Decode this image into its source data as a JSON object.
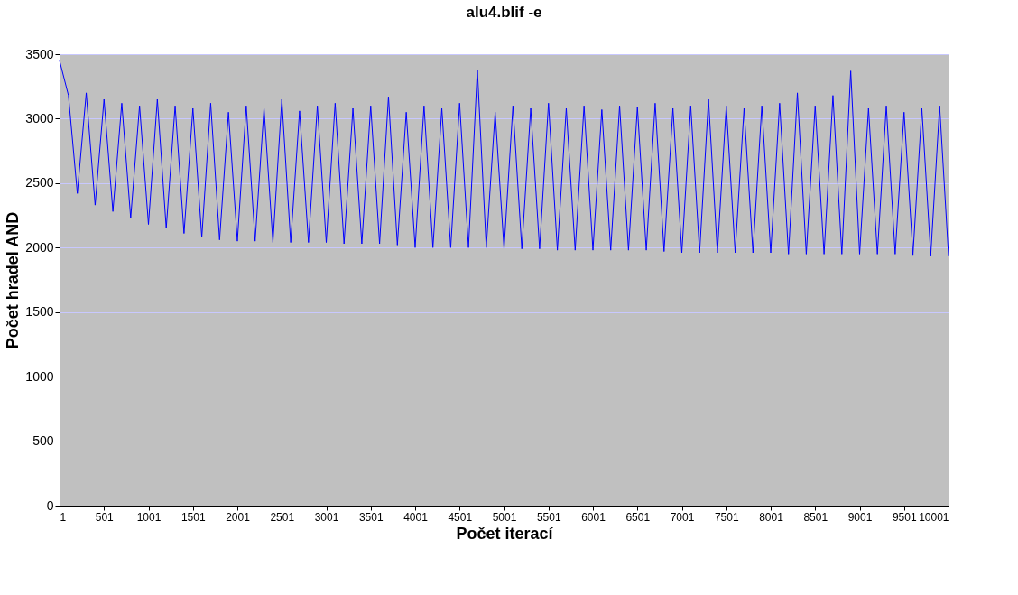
{
  "chart_data": {
    "type": "line",
    "title": "alu4.blif -e",
    "xlabel": "Počet iterací",
    "ylabel": "Počet hradel AND",
    "x": [
      1,
      101,
      201,
      301,
      401,
      501,
      601,
      701,
      801,
      901,
      1001,
      1101,
      1201,
      1301,
      1401,
      1501,
      1601,
      1701,
      1801,
      1901,
      2001,
      2101,
      2201,
      2301,
      2401,
      2501,
      2601,
      2701,
      2801,
      2901,
      3001,
      3101,
      3201,
      3301,
      3401,
      3501,
      3601,
      3701,
      3801,
      3901,
      4001,
      4101,
      4201,
      4301,
      4401,
      4501,
      4601,
      4701,
      4801,
      4901,
      5001,
      5101,
      5201,
      5301,
      5401,
      5501,
      5601,
      5701,
      5801,
      5901,
      6001,
      6101,
      6201,
      6301,
      6401,
      6501,
      6601,
      6701,
      6801,
      6901,
      7001,
      7101,
      7201,
      7301,
      7401,
      7501,
      7601,
      7701,
      7801,
      7901,
      8001,
      8101,
      8201,
      8301,
      8401,
      8501,
      8601,
      8701,
      8801,
      8901,
      9001,
      9101,
      9201,
      9301,
      9401,
      9501,
      9601,
      9701,
      9801,
      9901,
      10001
    ],
    "series": [
      {
        "color": "#0000ff",
        "values": [
          3450,
          3180,
          2420,
          3200,
          2330,
          3150,
          2280,
          3120,
          2230,
          3100,
          2180,
          3150,
          2150,
          3100,
          2110,
          3080,
          2080,
          3120,
          2060,
          3050,
          2050,
          3100,
          2050,
          3080,
          2040,
          3150,
          2040,
          3060,
          2040,
          3100,
          2040,
          3120,
          2030,
          3080,
          2030,
          3100,
          2030,
          3170,
          2020,
          3050,
          2000,
          3100,
          2000,
          3080,
          2000,
          3120,
          2000,
          3380,
          2000,
          3050,
          1990,
          3100,
          1990,
          3080,
          1990,
          3120,
          1980,
          3080,
          1980,
          3100,
          1980,
          3070,
          1980,
          3100,
          1980,
          3090,
          1980,
          3120,
          1970,
          3080,
          1960,
          3100,
          1960,
          3150,
          1960,
          3100,
          1960,
          3080,
          1960,
          3100,
          1960,
          3120,
          1950,
          3200,
          1950,
          3100,
          1950,
          3180,
          1950,
          3370,
          1950,
          3080,
          1950,
          3100,
          1950,
          3050,
          1945,
          3080,
          1940,
          3100,
          1940
        ]
      }
    ],
    "xlim": [
      1,
      10001
    ],
    "xticks": [
      1,
      501,
      1001,
      1501,
      2001,
      2501,
      3001,
      3501,
      4001,
      4501,
      5001,
      5501,
      6001,
      6501,
      7001,
      7501,
      8001,
      8501,
      9001,
      9501,
      10001
    ],
    "ylim": [
      0,
      3500
    ],
    "yticks": [
      0,
      500,
      1000,
      1500,
      2000,
      2500,
      3000,
      3500
    ],
    "grid": "y",
    "legend": false,
    "marker": "none",
    "line_style": "solid"
  }
}
